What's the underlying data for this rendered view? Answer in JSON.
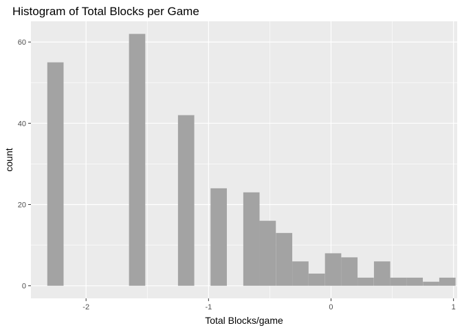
{
  "chart_data": {
    "type": "bar",
    "title": "Histogram of Total Blocks per Game",
    "xlabel": "Total Blocks/game",
    "ylabel": "count",
    "xlim": [
      -2.45,
      1.03
    ],
    "ylim": [
      -3.1,
      65.1
    ],
    "x_ticks": [
      -2,
      -1,
      0,
      1
    ],
    "x_minor_ticks": [
      -1.5,
      -0.5,
      0.5
    ],
    "y_ticks": [
      0,
      20,
      40,
      60
    ],
    "y_minor_ticks": [
      10,
      30,
      50
    ],
    "bin_width": 0.133,
    "bins": [
      {
        "x": -2.25,
        "count": 55
      },
      {
        "x": -1.583,
        "count": 62
      },
      {
        "x": -1.183,
        "count": 42
      },
      {
        "x": -0.917,
        "count": 24
      },
      {
        "x": -0.65,
        "count": 23
      },
      {
        "x": -0.517,
        "count": 16
      },
      {
        "x": -0.383,
        "count": 13
      },
      {
        "x": -0.25,
        "count": 6
      },
      {
        "x": -0.117,
        "count": 3
      },
      {
        "x": 0.017,
        "count": 8
      },
      {
        "x": 0.15,
        "count": 7
      },
      {
        "x": 0.283,
        "count": 2
      },
      {
        "x": 0.417,
        "count": 6
      },
      {
        "x": 0.55,
        "count": 2
      },
      {
        "x": 0.683,
        "count": 2
      },
      {
        "x": 0.817,
        "count": 1
      },
      {
        "x": 0.95,
        "count": 2
      }
    ],
    "colors": {
      "panel": "#ebebeb",
      "bar": "#a3a3a3",
      "grid": "#ffffff"
    },
    "grid": true,
    "legend": "none"
  }
}
